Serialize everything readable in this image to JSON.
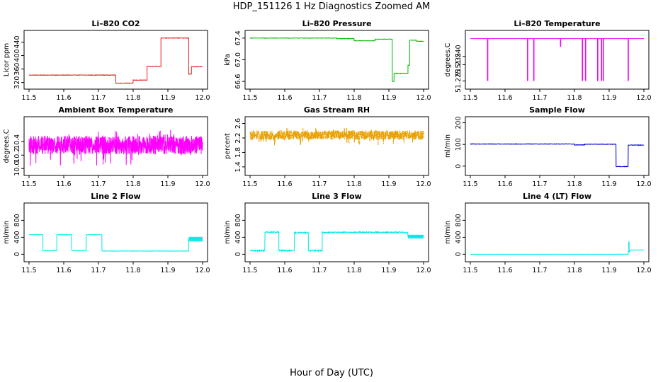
{
  "figure": {
    "title": "HDP_151126  1 Hz Diagnostics Zoomed AM",
    "xlabel": "Hour of Day (UTC)"
  },
  "chart_data": [
    {
      "type": "line",
      "title": "Li–820 CO2",
      "ylabel": "Licor ppm",
      "color": "#e0201c",
      "xlim": [
        11.5,
        12.0
      ],
      "ylim": [
        315,
        460
      ],
      "xticks": [
        "11.5",
        "11.6",
        "11.7",
        "11.8",
        "11.9",
        "12.0"
      ],
      "yticks": [
        {
          "v": 320,
          "label": "320"
        },
        {
          "v": 360,
          "label": "360"
        },
        {
          "v": 400,
          "label": "400"
        },
        {
          "v": 440,
          "label": "440"
        }
      ],
      "noise": 0.7,
      "smooth": true,
      "segments": [
        [
          11.5,
          11.75,
          342
        ],
        [
          11.75,
          11.8,
          318
        ],
        [
          11.8,
          11.84,
          327
        ],
        [
          11.84,
          11.88,
          368
        ],
        [
          11.88,
          11.96,
          452
        ],
        [
          11.96,
          11.968,
          345
        ],
        [
          11.968,
          12.0,
          367
        ]
      ]
    },
    {
      "type": "line",
      "title": "Li–820 Pressure",
      "ylabel": "kPa",
      "color": "#00b800",
      "xlim": [
        11.5,
        12.0
      ],
      "ylim": [
        66.55,
        67.45
      ],
      "xticks": [
        "11.5",
        "11.6",
        "11.7",
        "11.8",
        "11.9",
        "12.0"
      ],
      "yticks": [
        {
          "v": 66.6,
          "label": "66.6"
        },
        {
          "v": 67.0,
          "label": "67.0"
        },
        {
          "v": 67.4,
          "label": "67.4"
        }
      ],
      "noise": 0.004,
      "smooth": true,
      "segments": [
        [
          11.5,
          11.75,
          67.4
        ],
        [
          11.75,
          11.8,
          67.39
        ],
        [
          11.8,
          11.86,
          67.35
        ],
        [
          11.86,
          11.91,
          67.38
        ],
        [
          11.91,
          11.915,
          66.6
        ],
        [
          11.915,
          11.955,
          66.75
        ],
        [
          11.955,
          11.96,
          66.9
        ],
        [
          11.96,
          11.98,
          67.36
        ],
        [
          11.98,
          12.0,
          67.34
        ]
      ]
    },
    {
      "type": "line",
      "title": "Li–820 Temperature",
      "ylabel": "degrees.C",
      "color": "#ee00ee",
      "xlim": [
        11.5,
        12.0
      ],
      "ylim": [
        51.223,
        51.253
      ],
      "xticks": [
        "11.5",
        "11.6",
        "11.7",
        "11.8",
        "11.9",
        "12.0"
      ],
      "yticks": [
        {
          "v": 51.225,
          "label": "51.225"
        },
        {
          "v": 51.235,
          "label": "51.235"
        },
        {
          "v": 51.24,
          "label": "51.240"
        }
      ],
      "noise": 0,
      "smooth": true,
      "segments": [
        [
          11.5,
          12.0,
          51.251
        ]
      ],
      "spikes": [
        [
          11.55,
          51.225
        ],
        [
          11.665,
          51.225
        ],
        [
          11.683,
          51.225
        ],
        [
          11.76,
          51.246
        ],
        [
          11.823,
          51.225
        ],
        [
          11.832,
          51.225
        ],
        [
          11.867,
          51.225
        ],
        [
          11.878,
          51.225
        ],
        [
          11.883,
          51.225
        ],
        [
          11.955,
          51.225
        ]
      ]
    },
    {
      "type": "line",
      "title": "Ambient Box Temperature",
      "ylabel": "degrees.C",
      "color": "#ff00ff",
      "xlim": [
        11.5,
        12.0
      ],
      "ylim": [
        9.97,
        10.7
      ],
      "xticks": [
        "11.5",
        "11.6",
        "11.7",
        "11.8",
        "11.9",
        "12.0"
      ],
      "yticks": [
        {
          "v": 10.0,
          "label": "10.0"
        },
        {
          "v": 10.2,
          "label": "10.2"
        },
        {
          "v": 10.4,
          "label": "10.4"
        }
      ],
      "noise": 0.14,
      "smooth": false,
      "segments": [
        [
          11.5,
          12.0,
          10.35
        ]
      ]
    },
    {
      "type": "line",
      "title": "Gas Stream RH",
      "ylabel": "percent",
      "color": "#e8a000",
      "dotted": true,
      "xlim": [
        11.5,
        12.0
      ],
      "ylim": [
        1.3,
        2.65
      ],
      "xticks": [
        "11.5",
        "11.6",
        "11.7",
        "11.8",
        "11.9",
        "12.0"
      ],
      "yticks": [
        {
          "v": 1.4,
          "label": "1.4"
        },
        {
          "v": 1.8,
          "label": "1.8"
        },
        {
          "v": 2.2,
          "label": "2.2"
        },
        {
          "v": 2.6,
          "label": "2.6"
        }
      ],
      "noise": 0.13,
      "smooth": false,
      "segments": [
        [
          11.5,
          12.0,
          2.28
        ]
      ]
    },
    {
      "type": "line",
      "title": "Sample Flow",
      "ylabel": "ml/min",
      "color": "#0000c8",
      "xlim": [
        11.5,
        12.0
      ],
      "ylim": [
        -20,
        205
      ],
      "xticks": [
        "11.5",
        "11.6",
        "11.7",
        "11.8",
        "11.9",
        "12.0"
      ],
      "yticks": [
        {
          "v": 0,
          "label": "0"
        },
        {
          "v": 100,
          "label": "100"
        },
        {
          "v": 200,
          "label": "200"
        }
      ],
      "noise": 1.2,
      "smooth": true,
      "segments": [
        [
          11.5,
          11.8,
          102
        ],
        [
          11.8,
          11.83,
          98
        ],
        [
          11.83,
          11.92,
          101
        ],
        [
          11.92,
          11.955,
          -2
        ],
        [
          11.955,
          12.0,
          97
        ]
      ]
    },
    {
      "type": "line",
      "title": "Line 2 Flow",
      "ylabel": "ml/min",
      "color": "#00e8e8",
      "xlim": [
        11.5,
        12.0
      ],
      "ylim": [
        -60,
        1090
      ],
      "xticks": [
        "11.5",
        "11.6",
        "11.7",
        "11.8",
        "11.9",
        "12.0"
      ],
      "yticks": [
        {
          "v": 0,
          "label": "0"
        },
        {
          "v": 400,
          "label": "400"
        },
        {
          "v": 800,
          "label": "800"
        }
      ],
      "noise": 4,
      "smooth": true,
      "segments": [
        [
          11.5,
          11.54,
          460
        ],
        [
          11.54,
          11.58,
          85
        ],
        [
          11.58,
          11.623,
          460
        ],
        [
          11.623,
          11.665,
          85
        ],
        [
          11.665,
          11.71,
          460
        ],
        [
          11.71,
          11.96,
          75
        ],
        [
          11.96,
          12.0,
          360
        ]
      ],
      "bands": [
        [
          11.96,
          12.0,
          300,
          410
        ]
      ]
    },
    {
      "type": "line",
      "title": "Line 3 Flow",
      "ylabel": "ml/min",
      "color": "#00e8e8",
      "xlim": [
        11.5,
        12.0
      ],
      "ylim": [
        -60,
        1090
      ],
      "xticks": [
        "11.5",
        "11.6",
        "11.7",
        "11.8",
        "11.9",
        "12.0"
      ],
      "yticks": [
        {
          "v": 0,
          "label": "0"
        },
        {
          "v": 400,
          "label": "400"
        },
        {
          "v": 800,
          "label": "800"
        }
      ],
      "noise": 15,
      "smooth": true,
      "segments": [
        [
          11.5,
          11.543,
          85
        ],
        [
          11.543,
          11.583,
          520
        ],
        [
          11.583,
          11.628,
          85
        ],
        [
          11.628,
          11.668,
          505
        ],
        [
          11.668,
          11.708,
          85
        ],
        [
          11.708,
          11.955,
          515
        ],
        [
          11.955,
          12.0,
          420
        ]
      ],
      "bands": [
        [
          11.955,
          12.0,
          370,
          460
        ]
      ]
    },
    {
      "type": "line",
      "title": "Line 4 (LT) Flow",
      "ylabel": "ml/min",
      "color": "#00e8e8",
      "xlim": [
        11.5,
        12.0
      ],
      "ylim": [
        -60,
        1090
      ],
      "xticks": [
        "11.5",
        "11.6",
        "11.7",
        "11.8",
        "11.9",
        "12.0"
      ],
      "yticks": [
        {
          "v": 0,
          "label": "0"
        },
        {
          "v": 400,
          "label": "400"
        },
        {
          "v": 800,
          "label": "800"
        }
      ],
      "noise": 3,
      "smooth": true,
      "segments": [
        [
          11.5,
          11.955,
          0
        ],
        [
          11.955,
          11.96,
          60
        ],
        [
          11.96,
          12.0,
          100
        ]
      ],
      "spikes": [
        [
          11.957,
          300
        ]
      ]
    }
  ]
}
